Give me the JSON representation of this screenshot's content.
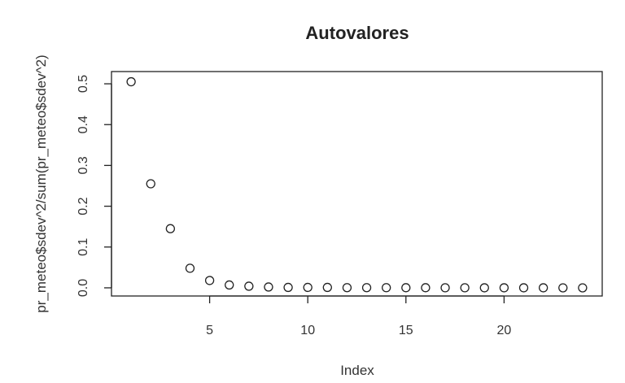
{
  "chart_data": {
    "type": "scatter",
    "title": "Autovalores",
    "xlabel": "Index",
    "ylabel": "pr_meteo$sdev^2/sum(pr_meteo$sdev^2)",
    "x": [
      1,
      2,
      3,
      4,
      5,
      6,
      7,
      8,
      9,
      10,
      11,
      12,
      13,
      14,
      15,
      16,
      17,
      18,
      19,
      20,
      21,
      22,
      23,
      24
    ],
    "y": [
      0.505,
      0.255,
      0.145,
      0.048,
      0.018,
      0.007,
      0.004,
      0.002,
      0.001,
      0.001,
      0.001,
      0.0005,
      0.0005,
      0.0004,
      0.0003,
      0.0003,
      0.0002,
      0.0002,
      0.0001,
      0.0001,
      0.0001,
      0.0001,
      0.0,
      0.0
    ],
    "xlim": [
      0,
      25
    ],
    "ylim": [
      -0.02,
      0.53
    ],
    "x_ticks": [
      "5",
      "10",
      "15",
      "20"
    ],
    "x_tick_values": [
      5,
      10,
      15,
      20
    ],
    "y_ticks": [
      "0.0",
      "0.1",
      "0.2",
      "0.3",
      "0.4",
      "0.5"
    ],
    "y_tick_values": [
      0,
      0.1,
      0.2,
      0.3,
      0.4,
      0.5
    ],
    "grid": false,
    "marker": "open-circle",
    "colors": {
      "marker": "#222222",
      "frame": "#222222",
      "background": "#ffffff"
    }
  }
}
